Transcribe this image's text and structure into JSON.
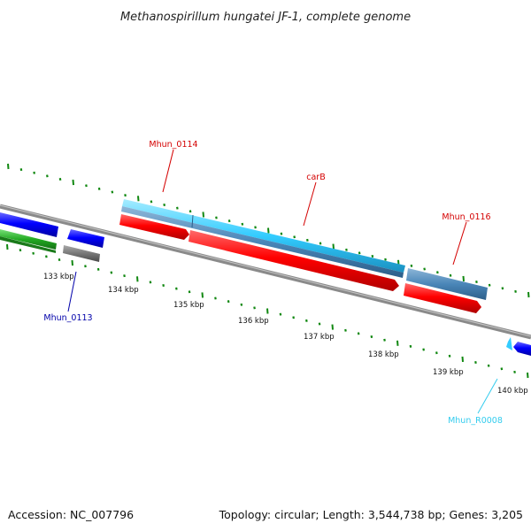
{
  "title": "Methanospirillum hungatei JF-1, complete genome",
  "footer": {
    "accession": "Accession: NC_007796",
    "summary": "Topology: circular; Length: 3,544,738 bp; Genes: 3,205"
  },
  "ticks": [
    "133 kbp",
    "134 kbp",
    "135 kbp",
    "136 kbp",
    "137 kbp",
    "138 kbp",
    "139 kbp",
    "140 kbp"
  ],
  "genes": [
    {
      "name": "Mhun_0113",
      "color": "#0000aa"
    },
    {
      "name": "Mhun_0114",
      "color": "#d40000"
    },
    {
      "name": "carB",
      "color": "#d40000"
    },
    {
      "name": "Mhun_0116",
      "color": "#d40000"
    },
    {
      "name": "Mhun_R0008",
      "color": "#33ccee"
    }
  ],
  "colors": {
    "forward_track": "#ff1a1a",
    "reverse_track": "#1a1aff",
    "rna_track": "#33ccff",
    "steelblue_track": "#4a86b8",
    "green_track": "#22aa22",
    "gray_track": "#777777",
    "backbone": "#8a8a8a",
    "dots": "#118811"
  }
}
